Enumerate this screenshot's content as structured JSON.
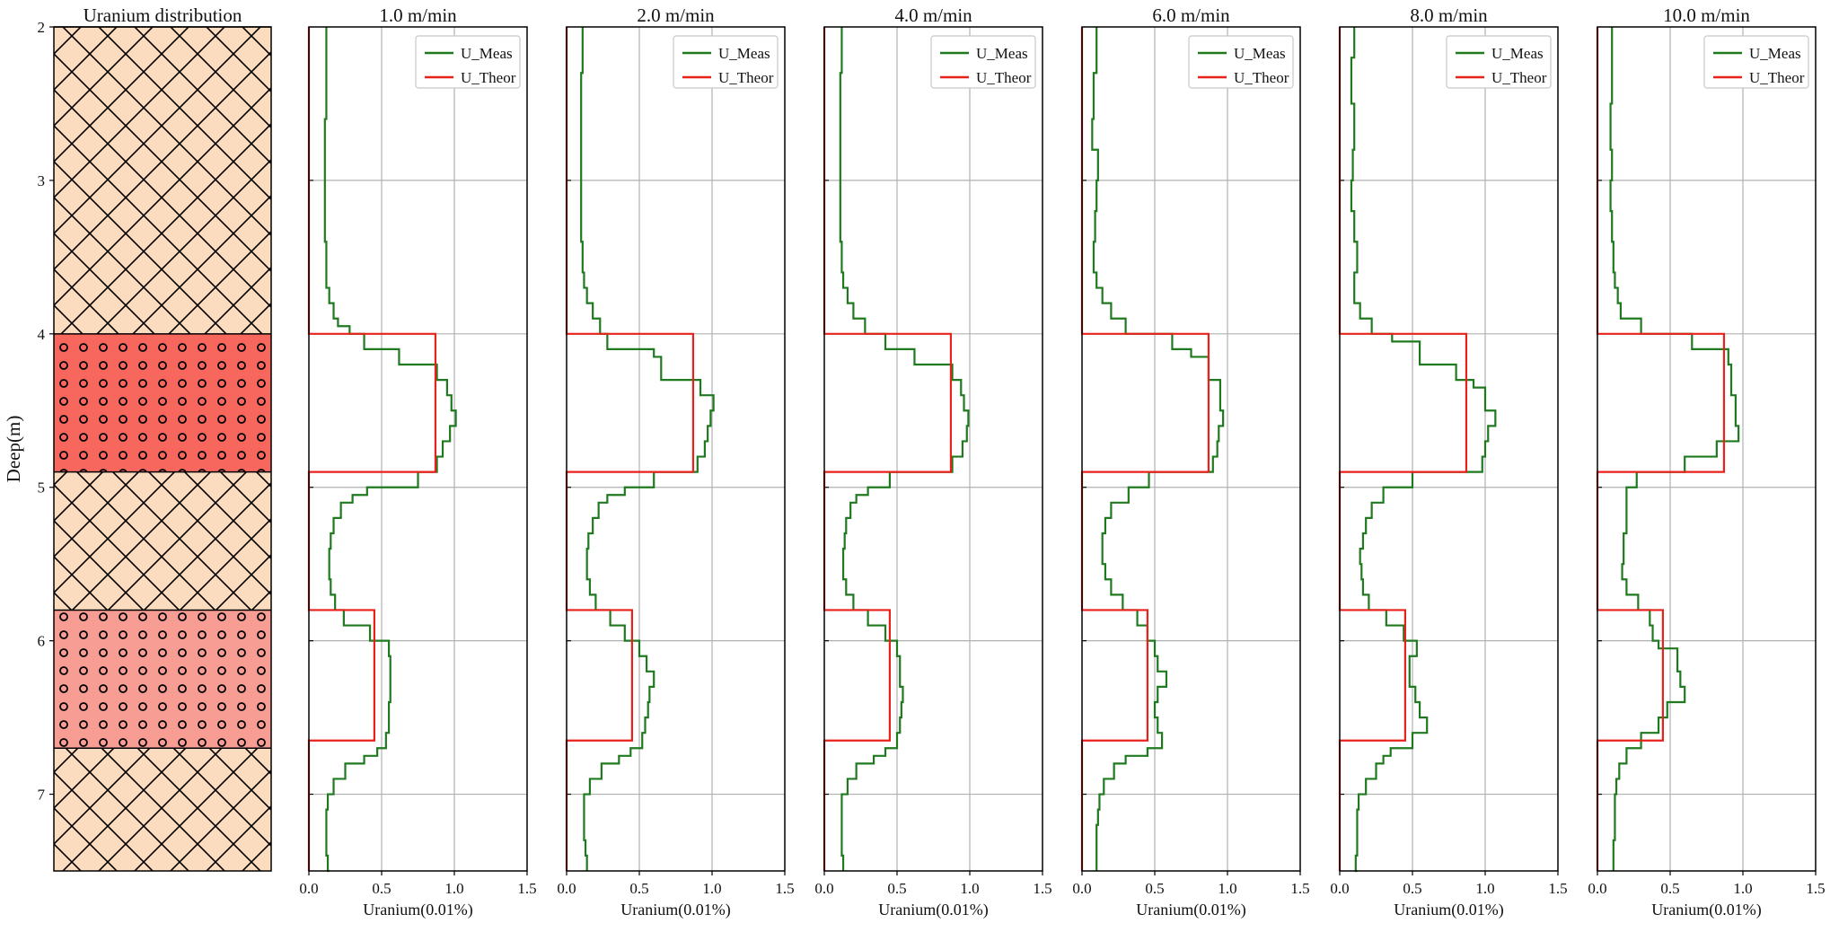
{
  "chart_data": {
    "type": "line",
    "ylabel": "Deep(m)",
    "ylim": [
      2,
      7.5
    ],
    "yticks": [
      2,
      3,
      4,
      5,
      6,
      7
    ],
    "xticks": [
      0.0,
      0.5,
      1.0,
      1.5
    ],
    "xlim": [
      0,
      1.5
    ],
    "grid": true,
    "legend": "top-right",
    "strata": {
      "title": "Uranium distribution",
      "layers": [
        {
          "top": 2.0,
          "bottom": 4.0,
          "pattern": "crosshatch",
          "fill": "#fcdcbe"
        },
        {
          "top": 4.0,
          "bottom": 4.9,
          "pattern": "circles",
          "fill": "#f8675d"
        },
        {
          "top": 4.9,
          "bottom": 5.8,
          "pattern": "crosshatch",
          "fill": "#fcdcbe"
        },
        {
          "top": 5.8,
          "bottom": 6.7,
          "pattern": "circles",
          "fill": "#f79d93"
        },
        {
          "top": 6.7,
          "bottom": 7.5,
          "pattern": "crosshatch",
          "fill": "#fcdcbe"
        }
      ]
    },
    "panels": [
      {
        "title": "1.0 m/min",
        "xlabel": "Uranium(0.01%)",
        "series": [
          {
            "name": "U_Meas",
            "color": "#1f7a1f",
            "depth": [
              2.0,
              2.3,
              2.6,
              3.0,
              3.4,
              3.7,
              3.8,
              3.9,
              3.95,
              4.0,
              4.1,
              4.2,
              4.3,
              4.4,
              4.5,
              4.6,
              4.7,
              4.8,
              4.9,
              5.0,
              5.05,
              5.1,
              5.2,
              5.3,
              5.4,
              5.5,
              5.6,
              5.7,
              5.8,
              5.9,
              6.0,
              6.1,
              6.2,
              6.3,
              6.4,
              6.5,
              6.6,
              6.7,
              6.75,
              6.8,
              6.9,
              7.0,
              7.1,
              7.2,
              7.3,
              7.4,
              7.5
            ],
            "values": [
              0.12,
              0.12,
              0.11,
              0.11,
              0.12,
              0.14,
              0.17,
              0.2,
              0.28,
              0.38,
              0.62,
              0.88,
              0.95,
              0.98,
              1.01,
              0.97,
              0.92,
              0.88,
              0.75,
              0.4,
              0.3,
              0.22,
              0.17,
              0.15,
              0.14,
              0.14,
              0.15,
              0.18,
              0.24,
              0.42,
              0.55,
              0.56,
              0.56,
              0.56,
              0.55,
              0.55,
              0.53,
              0.47,
              0.38,
              0.25,
              0.17,
              0.13,
              0.12,
              0.12,
              0.12,
              0.13,
              0.14
            ]
          },
          {
            "name": "U_Theor",
            "color": "#e8221b",
            "depth": [
              2.0,
              4.0,
              4.0,
              4.9,
              4.9,
              5.8,
              5.8,
              6.65,
              6.65,
              7.5
            ],
            "values": [
              0,
              0,
              0.87,
              0.87,
              0,
              0,
              0.45,
              0.45,
              0,
              0
            ]
          }
        ]
      },
      {
        "title": "2.0 m/min",
        "xlabel": "Uranium(0.01%)",
        "series": [
          {
            "name": "U_Meas",
            "color": "#1f7a1f",
            "depth": [
              2.0,
              2.3,
              2.6,
              3.0,
              3.4,
              3.6,
              3.7,
              3.8,
              3.9,
              4.0,
              4.1,
              4.15,
              4.3,
              4.4,
              4.5,
              4.6,
              4.7,
              4.8,
              4.9,
              5.0,
              5.05,
              5.1,
              5.2,
              5.3,
              5.4,
              5.5,
              5.6,
              5.7,
              5.8,
              5.9,
              6.0,
              6.1,
              6.2,
              6.3,
              6.4,
              6.5,
              6.6,
              6.7,
              6.75,
              6.8,
              6.9,
              7.0,
              7.1,
              7.2,
              7.3,
              7.4,
              7.5
            ],
            "values": [
              0.11,
              0.1,
              0.1,
              0.1,
              0.11,
              0.12,
              0.14,
              0.18,
              0.23,
              0.28,
              0.6,
              0.65,
              0.92,
              1.01,
              0.99,
              0.97,
              0.95,
              0.9,
              0.6,
              0.4,
              0.28,
              0.22,
              0.18,
              0.15,
              0.14,
              0.14,
              0.16,
              0.2,
              0.3,
              0.4,
              0.5,
              0.55,
              0.6,
              0.57,
              0.56,
              0.54,
              0.52,
              0.44,
              0.36,
              0.24,
              0.16,
              0.12,
              0.12,
              0.12,
              0.13,
              0.14,
              0.14
            ]
          },
          {
            "name": "U_Theor",
            "color": "#e8221b",
            "depth": [
              2.0,
              4.0,
              4.0,
              4.9,
              4.9,
              5.8,
              5.8,
              6.65,
              6.65,
              7.5
            ],
            "values": [
              0,
              0,
              0.87,
              0.87,
              0,
              0,
              0.45,
              0.45,
              0,
              0
            ]
          }
        ]
      },
      {
        "title": "4.0 m/min",
        "xlabel": "Uranium(0.01%)",
        "series": [
          {
            "name": "U_Meas",
            "color": "#1f7a1f",
            "depth": [
              2.0,
              2.3,
              2.6,
              3.0,
              3.4,
              3.6,
              3.7,
              3.8,
              3.9,
              4.0,
              4.1,
              4.2,
              4.3,
              4.4,
              4.5,
              4.6,
              4.7,
              4.8,
              4.9,
              5.0,
              5.05,
              5.1,
              5.2,
              5.3,
              5.4,
              5.5,
              5.6,
              5.7,
              5.8,
              5.9,
              6.0,
              6.1,
              6.2,
              6.3,
              6.4,
              6.5,
              6.6,
              6.7,
              6.75,
              6.8,
              6.9,
              7.0,
              7.1,
              7.2,
              7.3,
              7.4,
              7.5
            ],
            "values": [
              0.12,
              0.11,
              0.11,
              0.11,
              0.12,
              0.13,
              0.16,
              0.2,
              0.28,
              0.42,
              0.62,
              0.88,
              0.94,
              0.96,
              0.99,
              0.98,
              0.95,
              0.88,
              0.45,
              0.3,
              0.22,
              0.18,
              0.15,
              0.14,
              0.13,
              0.13,
              0.15,
              0.2,
              0.3,
              0.42,
              0.5,
              0.52,
              0.52,
              0.54,
              0.53,
              0.52,
              0.5,
              0.42,
              0.34,
              0.22,
              0.16,
              0.12,
              0.12,
              0.12,
              0.12,
              0.13,
              0.13
            ]
          },
          {
            "name": "U_Theor",
            "color": "#e8221b",
            "depth": [
              2.0,
              4.0,
              4.0,
              4.9,
              4.9,
              5.8,
              5.8,
              6.65,
              6.65,
              7.5
            ],
            "values": [
              0,
              0,
              0.87,
              0.87,
              0,
              0,
              0.45,
              0.45,
              0,
              0
            ]
          }
        ]
      },
      {
        "title": "6.0 m/min",
        "xlabel": "Uranium(0.01%)",
        "series": [
          {
            "name": "U_Meas",
            "color": "#1f7a1f",
            "depth": [
              2.0,
              2.3,
              2.6,
              2.8,
              3.0,
              3.2,
              3.4,
              3.6,
              3.7,
              3.8,
              3.9,
              4.0,
              4.1,
              4.15,
              4.3,
              4.4,
              4.5,
              4.6,
              4.7,
              4.8,
              4.9,
              5.0,
              5.1,
              5.2,
              5.3,
              5.4,
              5.5,
              5.6,
              5.7,
              5.8,
              5.9,
              6.0,
              6.1,
              6.2,
              6.3,
              6.4,
              6.5,
              6.6,
              6.7,
              6.75,
              6.8,
              6.9,
              7.0,
              7.1,
              7.2,
              7.3,
              7.4,
              7.5
            ],
            "values": [
              0.1,
              0.08,
              0.07,
              0.11,
              0.1,
              0.09,
              0.08,
              0.1,
              0.14,
              0.2,
              0.3,
              0.62,
              0.75,
              0.87,
              0.95,
              0.95,
              0.97,
              0.94,
              0.93,
              0.9,
              0.46,
              0.32,
              0.2,
              0.16,
              0.14,
              0.14,
              0.16,
              0.2,
              0.28,
              0.38,
              0.45,
              0.5,
              0.52,
              0.58,
              0.52,
              0.5,
              0.52,
              0.55,
              0.45,
              0.3,
              0.22,
              0.15,
              0.12,
              0.11,
              0.1,
              0.1,
              0.1,
              0.1
            ]
          },
          {
            "name": "U_Theor",
            "color": "#e8221b",
            "depth": [
              2.0,
              4.0,
              4.0,
              4.9,
              4.9,
              5.8,
              5.8,
              6.65,
              6.65,
              7.5
            ],
            "values": [
              0,
              0,
              0.87,
              0.87,
              0,
              0,
              0.45,
              0.45,
              0,
              0
            ]
          }
        ]
      },
      {
        "title": "8.0 m/min",
        "xlabel": "Uranium(0.01%)",
        "series": [
          {
            "name": "U_Meas",
            "color": "#1f7a1f",
            "depth": [
              2.0,
              2.2,
              2.5,
              2.8,
              3.0,
              3.2,
              3.4,
              3.6,
              3.8,
              3.9,
              4.0,
              4.05,
              4.2,
              4.3,
              4.35,
              4.5,
              4.6,
              4.7,
              4.8,
              4.9,
              5.0,
              5.1,
              5.2,
              5.3,
              5.4,
              5.5,
              5.6,
              5.7,
              5.8,
              5.9,
              6.0,
              6.1,
              6.2,
              6.3,
              6.4,
              6.5,
              6.6,
              6.7,
              6.75,
              6.8,
              6.9,
              7.0,
              7.1,
              7.2,
              7.3,
              7.4,
              7.5
            ],
            "values": [
              0.1,
              0.08,
              0.1,
              0.09,
              0.08,
              0.1,
              0.12,
              0.1,
              0.14,
              0.22,
              0.36,
              0.55,
              0.8,
              0.92,
              1.0,
              1.07,
              1.02,
              1.0,
              0.98,
              0.5,
              0.3,
              0.22,
              0.18,
              0.16,
              0.14,
              0.15,
              0.16,
              0.2,
              0.32,
              0.44,
              0.53,
              0.48,
              0.48,
              0.52,
              0.55,
              0.6,
              0.5,
              0.35,
              0.3,
              0.25,
              0.18,
              0.13,
              0.12,
              0.12,
              0.12,
              0.11,
              0.12
            ]
          },
          {
            "name": "U_Theor",
            "color": "#e8221b",
            "depth": [
              2.0,
              4.0,
              4.0,
              4.9,
              4.9,
              5.8,
              5.8,
              6.65,
              6.65,
              7.5
            ],
            "values": [
              0,
              0,
              0.87,
              0.87,
              0,
              0,
              0.45,
              0.45,
              0,
              0
            ]
          }
        ]
      },
      {
        "title": "10.0 m/min",
        "xlabel": "Uranium(0.01%)",
        "series": [
          {
            "name": "U_Meas",
            "color": "#1f7a1f",
            "depth": [
              2.0,
              2.2,
              2.5,
              2.8,
              3.0,
              3.2,
              3.4,
              3.6,
              3.7,
              3.8,
              3.9,
              4.0,
              4.1,
              4.2,
              4.4,
              4.6,
              4.7,
              4.8,
              4.9,
              5.0,
              5.1,
              5.3,
              5.5,
              5.6,
              5.7,
              5.8,
              5.9,
              6.0,
              6.05,
              6.2,
              6.3,
              6.4,
              6.5,
              6.6,
              6.7,
              6.8,
              6.9,
              7.0,
              7.1,
              7.2,
              7.3,
              7.4,
              7.5
            ],
            "values": [
              0.1,
              0.1,
              0.09,
              0.1,
              0.09,
              0.1,
              0.11,
              0.12,
              0.14,
              0.16,
              0.3,
              0.65,
              0.9,
              0.92,
              0.95,
              0.97,
              0.82,
              0.6,
              0.27,
              0.2,
              0.2,
              0.18,
              0.17,
              0.2,
              0.28,
              0.36,
              0.38,
              0.42,
              0.55,
              0.57,
              0.6,
              0.48,
              0.42,
              0.3,
              0.2,
              0.15,
              0.13,
              0.12,
              0.12,
              0.12,
              0.11,
              0.11,
              0.11
            ]
          },
          {
            "name": "U_Theor",
            "color": "#e8221b",
            "depth": [
              2.0,
              4.0,
              4.0,
              4.9,
              4.9,
              5.8,
              5.8,
              6.65,
              6.65,
              7.5
            ],
            "values": [
              0,
              0,
              0.87,
              0.87,
              0,
              0,
              0.45,
              0.45,
              0,
              0
            ]
          }
        ]
      }
    ],
    "legend_labels": [
      "U_Meas",
      "U_Theor"
    ]
  }
}
